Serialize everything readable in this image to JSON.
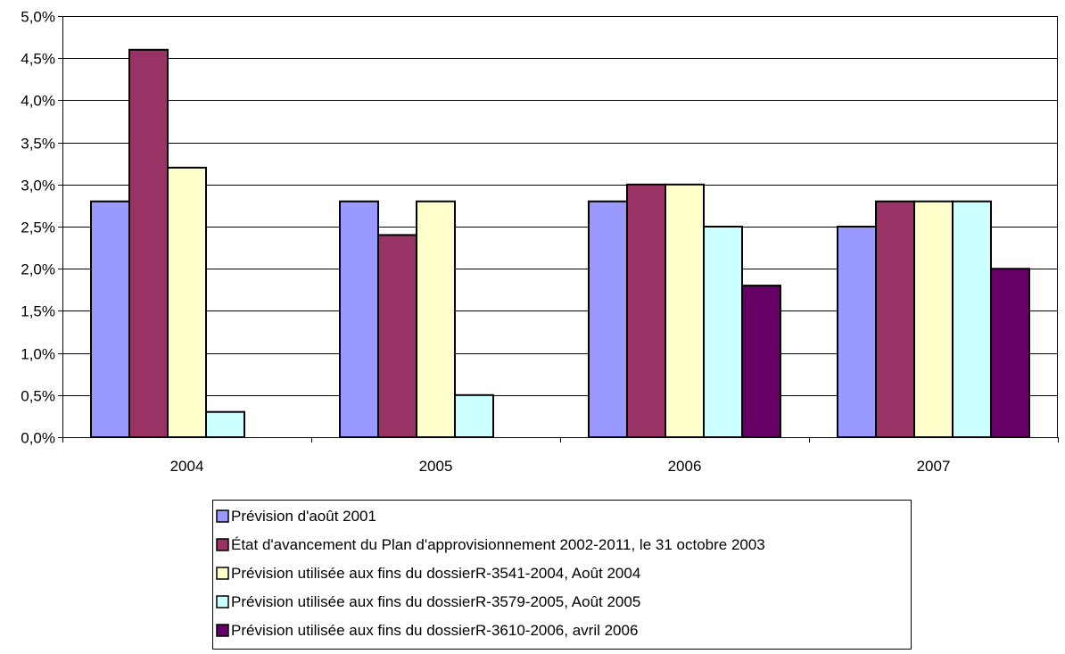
{
  "chart_data": {
    "type": "bar",
    "categories": [
      "2004",
      "2005",
      "2006",
      "2007"
    ],
    "ylim": [
      0,
      5
    ],
    "y_ticks": [
      0,
      0.5,
      1,
      1.5,
      2,
      2.5,
      3,
      3.5,
      4,
      4.5,
      5
    ],
    "y_tick_labels": [
      "0,0%",
      "0,5%",
      "1,0%",
      "1,5%",
      "2,0%",
      "2,5%",
      "3,0%",
      "3,5%",
      "4,0%",
      "4,5%",
      "5,0%"
    ],
    "grid": true,
    "legend_position": "bottom",
    "series": [
      {
        "name": "Prévision d'août 2001",
        "color": "#9999ff",
        "values": [
          2.8,
          2.8,
          2.8,
          2.5
        ]
      },
      {
        "name": "État d'avancement du Plan d'approvisionnement 2002-2011, le 31 octobre 2003",
        "color": "#993366",
        "values": [
          4.6,
          2.4,
          3.0,
          2.8
        ]
      },
      {
        "name": "Prévision utilisée aux fins du dossierR-3541-2004, Août 2004",
        "color": "#ffffcc",
        "values": [
          3.2,
          2.8,
          3.0,
          2.8
        ]
      },
      {
        "name": "Prévision utilisée aux fins du dossierR-3579-2005, Août 2005",
        "color": "#ccffff",
        "values": [
          0.3,
          0.5,
          2.5,
          2.8
        ]
      },
      {
        "name": "Prévision utilisée aux fins du dossierR-3610-2006, avril 2006",
        "color": "#660066",
        "values": [
          null,
          null,
          1.8,
          2.0
        ]
      }
    ]
  }
}
